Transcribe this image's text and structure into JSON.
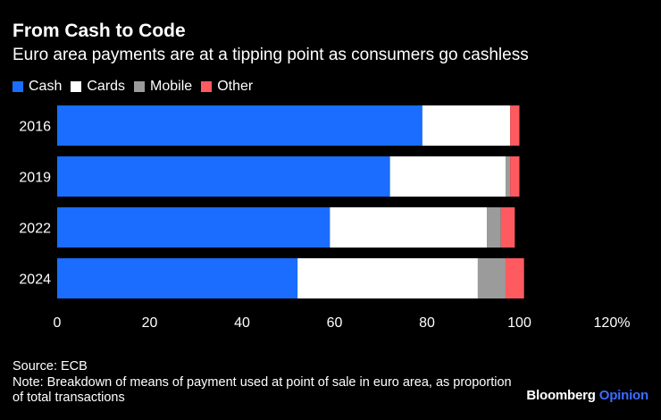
{
  "header": {
    "title": "From Cash to Code",
    "subtitle": "Euro area payments are at a tipping point as consumers go cashless"
  },
  "colors": {
    "cash": "#1a6dff",
    "cards": "#ffffff",
    "mobile": "#9b9b9b",
    "other": "#ff5a5f",
    "background": "#000000",
    "text": "#ffffff"
  },
  "chart_data": {
    "type": "bar",
    "orientation": "horizontal",
    "stacked": true,
    "title": "From Cash to Code",
    "subtitle": "Euro area payments are at a tipping point as consumers go cashless",
    "categories": [
      "2016",
      "2019",
      "2022",
      "2024"
    ],
    "series": [
      {
        "name": "Cash",
        "values": [
          79,
          72,
          59,
          52
        ]
      },
      {
        "name": "Cards",
        "values": [
          19,
          25,
          34,
          39
        ]
      },
      {
        "name": "Mobile",
        "values": [
          0,
          1,
          3,
          6
        ]
      },
      {
        "name": "Other",
        "values": [
          2,
          2,
          3,
          4
        ]
      }
    ],
    "xlim": [
      0,
      120
    ],
    "xticks": [
      "0",
      "20",
      "40",
      "60",
      "80",
      "100",
      "120%"
    ],
    "xlabel": "",
    "ylabel": "",
    "legend": "top-left"
  },
  "footer": {
    "source": "Source: ECB",
    "note": "Note: Breakdown of means of payment used at point of sale in euro area, as proportion of total transactions",
    "brand_name": "Bloomberg",
    "brand_accent": "Opinion"
  }
}
